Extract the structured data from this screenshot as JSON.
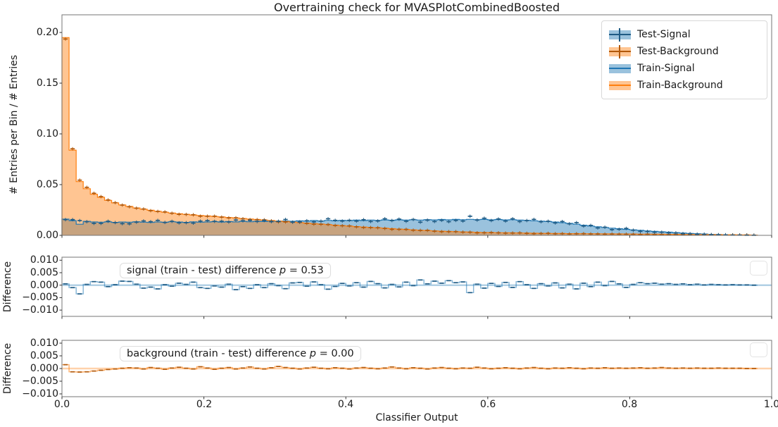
{
  "figure": {
    "title": "Overtraining check for MVASPlotCombinedBoosted",
    "xlabel": "Classifier Output",
    "xticks": [
      "0.0",
      "0.2",
      "0.4",
      "0.6",
      "0.8",
      "1.0"
    ]
  },
  "main_axes": {
    "ylabel": "# Entries per Bin / # Entries",
    "yticks": [
      "0.20",
      "0.15",
      "0.10",
      "0.05",
      "0.00"
    ],
    "legend": [
      "Test-Signal",
      "Test-Background",
      "Train-Signal",
      "Train-Background"
    ]
  },
  "signal_diff_axes": {
    "ylabel": "Difference",
    "yticks": [
      "0.010",
      "0.005",
      "0.000",
      "−0.005",
      "−0.010"
    ],
    "annotation": {
      "prefix": "signal (train - test) difference ",
      "pvar": "p",
      "pval": " = 0.53"
    }
  },
  "background_diff_axes": {
    "ylabel": "Difference",
    "yticks": [
      "0.010",
      "0.005",
      "0.000",
      "−0.005",
      "−0.010"
    ],
    "annotation": {
      "prefix": "background (train - test) difference ",
      "pvar": "p",
      "pval": " = 0.00"
    }
  },
  "colors": {
    "train_signal": "#1f77b4",
    "train_background": "#ff7f0e",
    "test_signal": "#1f5b84",
    "test_background": "#b2590a",
    "fill_signal": "rgba(31,119,180,0.45)",
    "fill_background": "rgba(255,127,14,0.45)",
    "ref_signal": "rgba(31,119,180,0.35)",
    "ref_background": "rgba(255,127,14,0.35)",
    "step_signal": "rgba(31,119,180,0.55)",
    "step_background": "rgba(255,127,14,0.6)",
    "spine": "#767676",
    "tick": "#333333"
  },
  "chart_data": [
    {
      "type": "bar",
      "subtype": "histogram-100-bins",
      "title": "Overtraining check for MVASPlotCombinedBoosted",
      "xlabel": "Classifier Output",
      "ylabel": "# Entries per Bin / # Entries",
      "xlim": [
        0,
        1
      ],
      "ylim": [
        0,
        0.2174
      ],
      "n_bins": 100,
      "bin_width": 0.01,
      "legend_position": "upper right",
      "series": [
        {
          "name": "Test-Signal",
          "style": "errorbar",
          "values": [
            0.0155,
            0.0155,
            0.0145,
            0.0135,
            0.0118,
            0.0118,
            0.0139,
            0.0126,
            0.0115,
            0.0114,
            0.013,
            0.0142,
            0.0135,
            0.0147,
            0.0127,
            0.0138,
            0.0123,
            0.0125,
            0.0121,
            0.014,
            0.0145,
            0.0138,
            0.0139,
            0.0132,
            0.0151,
            0.0144,
            0.0147,
            0.0137,
            0.0146,
            0.0135,
            0.0139,
            0.0156,
            0.013,
            0.0133,
            0.0144,
            0.0133,
            0.014,
            0.0163,
            0.0148,
            0.0141,
            0.0148,
            0.014,
            0.0154,
            0.0136,
            0.0142,
            0.0163,
            0.0146,
            0.016,
            0.0138,
            0.0156,
            0.013,
            0.015,
            0.0136,
            0.0148,
            0.0135,
            0.0147,
            0.0141,
            0.0188,
            0.0151,
            0.0169,
            0.0146,
            0.0161,
            0.0141,
            0.0163,
            0.0136,
            0.0146,
            0.0157,
            0.0134,
            0.0139,
            0.0122,
            0.0136,
            0.0114,
            0.0125,
            0.0092,
            0.0098,
            0.0073,
            0.008,
            0.0056,
            0.006,
            0.0068,
            0.0051,
            0.0039,
            0.0038,
            0.0031,
            0.0031,
            0.0025,
            0.0024,
            0.0018,
            0.0017,
            0.0012,
            0.0012,
            0.0007,
            0.0006,
            0.0005,
            0.0002,
            0.0002,
            0.0001,
            0.0001,
            0,
            0
          ]
        },
        {
          "name": "Test-Background",
          "style": "errorbar",
          "values": [
            0.1935,
            0.0853,
            0.0544,
            0.0473,
            0.0415,
            0.0382,
            0.0349,
            0.0322,
            0.0299,
            0.0282,
            0.0268,
            0.026,
            0.0243,
            0.0236,
            0.0231,
            0.0218,
            0.0208,
            0.0206,
            0.0203,
            0.0189,
            0.0189,
            0.0189,
            0.018,
            0.0172,
            0.0173,
            0.0164,
            0.0155,
            0.0155,
            0.0153,
            0.0143,
            0.0133,
            0.0132,
            0.013,
            0.0128,
            0.0119,
            0.0111,
            0.011,
            0.0107,
            0.0098,
            0.0095,
            0.0093,
            0.0084,
            0.0078,
            0.0077,
            0.0075,
            0.0068,
            0.006,
            0.006,
            0.0059,
            0.0051,
            0.0049,
            0.0049,
            0.0042,
            0.0037,
            0.0037,
            0.0037,
            0.0032,
            0.0031,
            0.0025,
            0.0026,
            0.0028,
            0.0025,
            0.0022,
            0.0023,
            0.0024,
            0.002,
            0.0017,
            0.0019,
            0.002,
            0.0016,
            0.0017,
            0.0014,
            0.0016,
            0.0017,
            0.0014,
            0.0014,
            0.0012,
            0.0013,
            0.0012,
            0.0012,
            0.0011,
            0.0009,
            0.0011,
            0.0009,
            0.0007,
            0.0008,
            0.0009,
            0.0007,
            0.0008,
            0.0006,
            0.0007,
            0.0006,
            0.0005,
            0.0005,
            0.0005,
            0.0004,
            0.0004,
            0.0002,
            0,
            0
          ]
        },
        {
          "name": "Train-Signal",
          "style": "filled-step",
          "values": [
            0.016,
            0.0145,
            0.011,
            0.0138,
            0.0132,
            0.013,
            0.0133,
            0.0128,
            0.0131,
            0.0129,
            0.0134,
            0.013,
            0.0127,
            0.0132,
            0.0129,
            0.0134,
            0.0131,
            0.0128,
            0.0133,
            0.013,
            0.0132,
            0.0135,
            0.0131,
            0.0136,
            0.0133,
            0.0138,
            0.0134,
            0.0139,
            0.0136,
            0.0141,
            0.0137,
            0.0142,
            0.0139,
            0.0144,
            0.014,
            0.0146,
            0.0142,
            0.0147,
            0.0143,
            0.0148,
            0.0145,
            0.015,
            0.0146,
            0.0151,
            0.0148,
            0.0152,
            0.0149,
            0.0153,
            0.015,
            0.0154,
            0.0151,
            0.0155,
            0.0152,
            0.0156,
            0.0153,
            0.0157,
            0.0154,
            0.0158,
            0.0155,
            0.0157,
            0.0153,
            0.0156,
            0.0152,
            0.0154,
            0.015,
            0.0148,
            0.0144,
            0.014,
            0.0136,
            0.0131,
            0.0125,
            0.0118,
            0.011,
            0.01,
            0.0092,
            0.0085,
            0.0078,
            0.0071,
            0.0065,
            0.0059,
            0.0054,
            0.0049,
            0.0044,
            0.0039,
            0.0035,
            0.0031,
            0.0027,
            0.0023,
            0.0019,
            0.0016,
            0.0013,
            0.001,
            0.0008,
            0.0006,
            0.0004,
            0.0003,
            0.0002,
            0.0001,
            0,
            0
          ]
        },
        {
          "name": "Train-Background",
          "style": "filled-step",
          "values": [
            0.195,
            0.084,
            0.053,
            0.046,
            0.0405,
            0.0375,
            0.0345,
            0.032,
            0.03,
            0.0285,
            0.027,
            0.0258,
            0.0247,
            0.0237,
            0.0228,
            0.022,
            0.0213,
            0.0207,
            0.0201,
            0.0196,
            0.0191,
            0.0186,
            0.0181,
            0.0176,
            0.0171,
            0.0166,
            0.0161,
            0.0156,
            0.0151,
            0.0146,
            0.0141,
            0.0136,
            0.0131,
            0.0126,
            0.0121,
            0.0116,
            0.0111,
            0.0106,
            0.0101,
            0.0096,
            0.0091,
            0.0086,
            0.0082,
            0.0078,
            0.0074,
            0.007,
            0.0066,
            0.0062,
            0.0058,
            0.0054,
            0.005,
            0.0047,
            0.0044,
            0.0041,
            0.0038,
            0.0036,
            0.0034,
            0.0032,
            0.003,
            0.0028,
            0.0027,
            0.0026,
            0.0025,
            0.0024,
            0.0023,
            0.0022,
            0.0021,
            0.002,
            0.0019,
            0.0018,
            0.0018,
            0.0017,
            0.0017,
            0.0016,
            0.0016,
            0.0015,
            0.0015,
            0.0014,
            0.0014,
            0.0013,
            0.0013,
            0.0012,
            0.0012,
            0.0011,
            0.0011,
            0.001,
            0.001,
            0.0009,
            0.0009,
            0.0008,
            0.0008,
            0.0007,
            0.0007,
            0.0006,
            0.0006,
            0.0005,
            0.0004,
            0.0002,
            0,
            0
          ]
        }
      ]
    },
    {
      "type": "line",
      "subtype": "step-difference",
      "name": "signal (train - test) difference",
      "p_value": 0.53,
      "ylabel": "Difference",
      "xlim": [
        0,
        1
      ],
      "ylim": [
        -0.0125,
        0.0112
      ],
      "values": [
        0.0005,
        -0.001,
        -0.0035,
        0.0003,
        0.0014,
        0.0012,
        -0.0006,
        0.0002,
        0.0016,
        0.0015,
        0.0004,
        -0.0012,
        -0.0008,
        -0.0015,
        0.0002,
        -0.0004,
        0.0008,
        0.0003,
        0.0012,
        -0.001,
        -0.0013,
        -0.0003,
        -0.0008,
        0.0004,
        -0.0018,
        -0.0006,
        -0.0013,
        0.0002,
        -0.001,
        0.0006,
        -0.0002,
        -0.0014,
        0.0009,
        0.0011,
        -0.0004,
        0.0013,
        0.0002,
        -0.0016,
        -0.0005,
        0.0007,
        -0.0003,
        0.001,
        -0.0008,
        0.0015,
        0.0006,
        -0.0011,
        0.0003,
        -0.0007,
        0.0012,
        -0.0002,
        0.0021,
        0.0005,
        0.0016,
        0.0008,
        0.0018,
        0.001,
        0.0013,
        -0.003,
        0.0004,
        -0.0012,
        0.0007,
        -0.0005,
        0.0011,
        -0.0009,
        0.0014,
        0.0002,
        -0.0013,
        0.0006,
        -0.0003,
        0.0009,
        -0.0011,
        0.0004,
        -0.0015,
        0.0008,
        -0.0006,
        0.0012,
        -0.0002,
        0.0015,
        0.0005,
        -0.0009,
        0.0003,
        0.001,
        0.0006,
        0.0008,
        0.0004,
        0.0006,
        0.0003,
        0.0005,
        0.0002,
        0.0004,
        0.0001,
        0.0003,
        0.0002,
        0.0001,
        0.0002,
        0.0001,
        0.0001,
        0,
        0,
        0
      ]
    },
    {
      "type": "line",
      "subtype": "step-difference",
      "name": "background (train - test) difference",
      "p_value": 0.0,
      "ylabel": "Difference",
      "xlabel": "Classifier Output",
      "xlim": [
        0,
        1
      ],
      "ylim": [
        -0.0111,
        0.0111
      ],
      "values": [
        0.0015,
        -0.0013,
        -0.0014,
        -0.0013,
        -0.001,
        -0.0007,
        -0.0004,
        -0.0002,
        0.0001,
        0.0003,
        0.0002,
        -0.0002,
        0.0004,
        0.0001,
        -0.0003,
        0.0002,
        0.0005,
        0.0001,
        -0.0002,
        0.0007,
        0.0002,
        -0.0003,
        0.0001,
        0.0004,
        -0.0002,
        0.0002,
        0.0006,
        0.0001,
        -0.0002,
        0.0003,
        0.0008,
        0.0004,
        0.0001,
        -0.0002,
        0.0002,
        0.0005,
        0.0001,
        -0.0001,
        0.0003,
        0.0001,
        -0.0002,
        0.0002,
        0.0004,
        0.0001,
        -0.0001,
        0.0002,
        0.0006,
        0.0002,
        -0.0001,
        0.0003,
        0.0001,
        -0.0002,
        0.0002,
        0.0004,
        0.0001,
        -0.0001,
        0.0002,
        0.0001,
        0.0005,
        0.0002,
        -0.0001,
        0.0001,
        0.0003,
        0.0001,
        -0.0001,
        0.0002,
        0.0004,
        0.0001,
        -0.0001,
        0.0002,
        0.0001,
        0.0003,
        0.0001,
        -0.0001,
        0.0002,
        0.0001,
        0.0003,
        0.0001,
        0.0002,
        0.0001,
        0.0002,
        0.0003,
        0.0001,
        0.0002,
        0.0004,
        0.0002,
        0.0001,
        0.0002,
        0.0001,
        0.0002,
        0.0001,
        0.0001,
        0.0002,
        0.0001,
        0.0001,
        0.0001,
        0,
        0,
        0,
        0
      ]
    }
  ]
}
